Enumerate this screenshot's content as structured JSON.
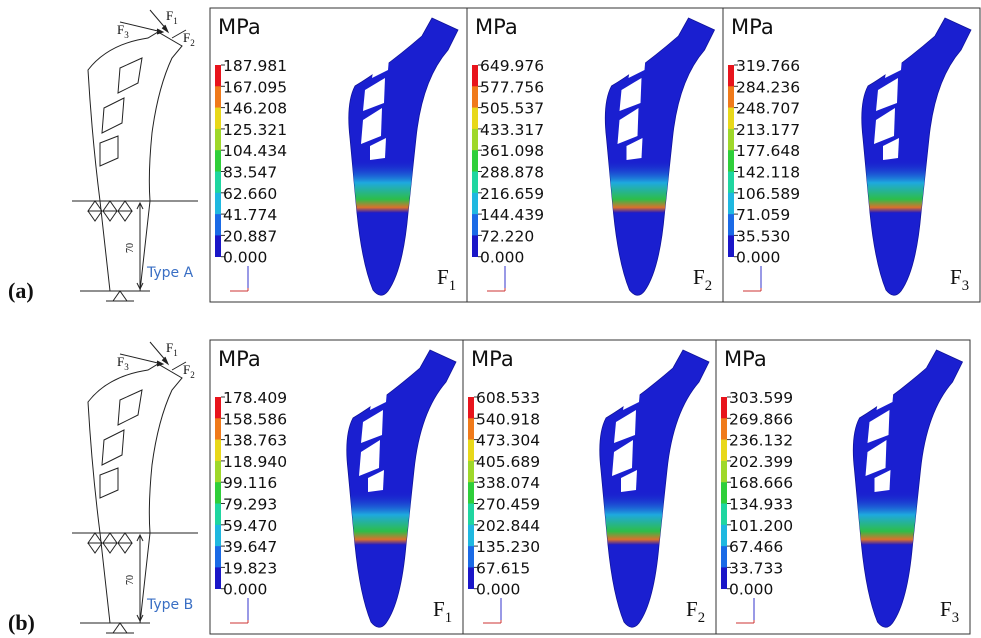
{
  "rows": [
    {
      "label": "(a)",
      "schematic": {
        "forces": [
          {
            "symbol": "F",
            "subscript": "3"
          },
          {
            "symbol": "F",
            "subscript": "1"
          },
          {
            "symbol": "F",
            "subscript": "2"
          }
        ],
        "dimension": "70",
        "type": "Type A"
      },
      "panels": [
        {
          "unit": "MPa",
          "legend": [
            "187.981",
            "167.095",
            "146.208",
            "125.321",
            "104.434",
            "83.547",
            "62.660",
            "41.774",
            "20.887",
            "0.000"
          ],
          "force": {
            "symbol": "F",
            "subscript": "1"
          }
        },
        {
          "unit": "MPa",
          "legend": [
            "649.976",
            "577.756",
            "505.537",
            "433.317",
            "361.098",
            "288.878",
            "216.659",
            "144.439",
            "72.220",
            "0.000"
          ],
          "force": {
            "symbol": "F",
            "subscript": "2"
          }
        },
        {
          "unit": "MPa",
          "legend": [
            "319.766",
            "284.236",
            "248.707",
            "213.177",
            "177.648",
            "142.118",
            "106.589",
            "71.059",
            "35.530",
            "0.000"
          ],
          "force": {
            "symbol": "F",
            "subscript": "3"
          }
        }
      ]
    },
    {
      "label": "(b)",
      "schematic": {
        "forces": [
          {
            "symbol": "F",
            "subscript": "3"
          },
          {
            "symbol": "F",
            "subscript": "1"
          },
          {
            "symbol": "F",
            "subscript": "2"
          }
        ],
        "dimension": "70",
        "type": "Type B"
      },
      "panels": [
        {
          "unit": "MPa",
          "legend": [
            "178.409",
            "158.586",
            "138.763",
            "118.940",
            "99.116",
            "79.293",
            "59.470",
            "39.647",
            "19.823",
            "0.000"
          ],
          "force": {
            "symbol": "F",
            "subscript": "1"
          }
        },
        {
          "unit": "MPa",
          "legend": [
            "608.533",
            "540.918",
            "473.304",
            "405.689",
            "338.074",
            "270.459",
            "202.844",
            "135.230",
            "67.615",
            "0.000"
          ],
          "force": {
            "symbol": "F",
            "subscript": "2"
          }
        },
        {
          "unit": "MPa",
          "legend": [
            "303.599",
            "269.866",
            "236.132",
            "202.399",
            "168.666",
            "134.933",
            "101.200",
            "67.466",
            "33.733",
            "0.000"
          ],
          "force": {
            "symbol": "F",
            "subscript": "3"
          }
        }
      ]
    }
  ]
}
